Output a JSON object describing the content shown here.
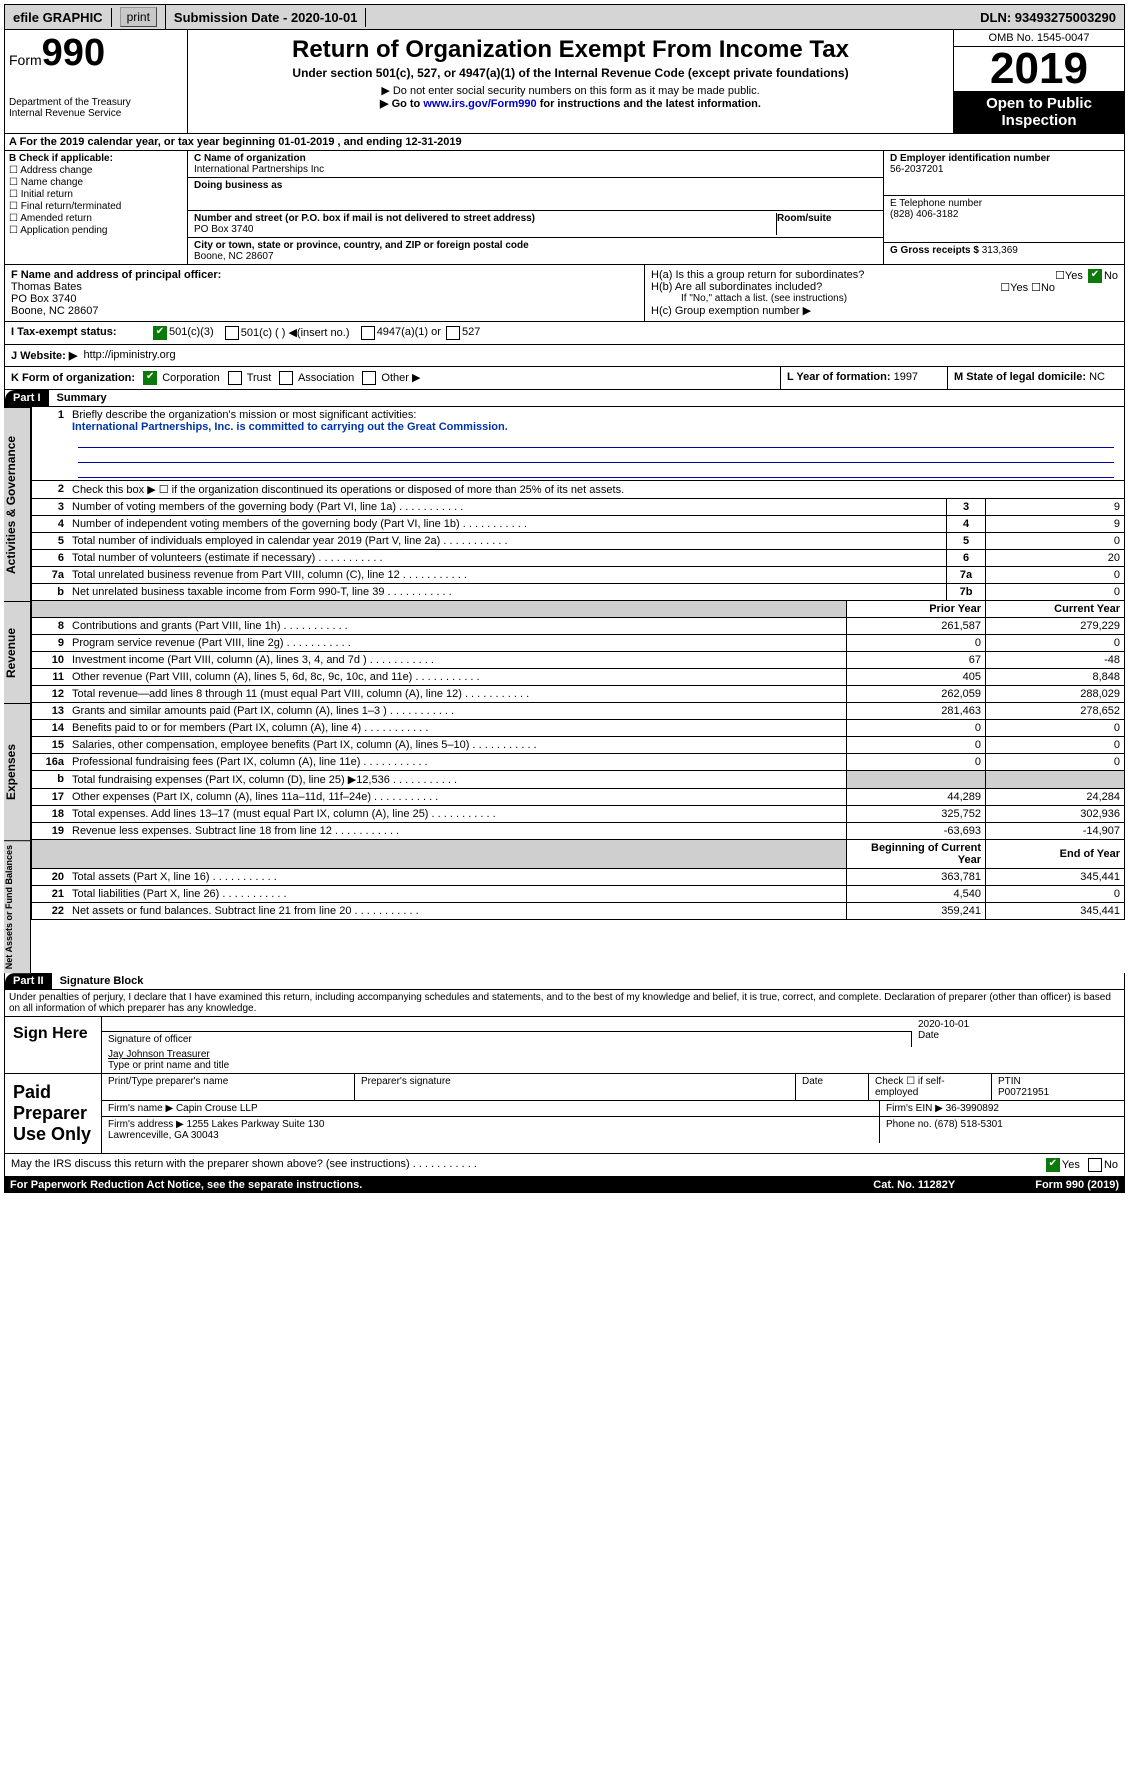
{
  "topbar": {
    "efile": "efile GRAPHIC",
    "print": "print",
    "submission": "Submission Date - 2020-10-01",
    "dln": "DLN: 93493275003290"
  },
  "header": {
    "form_word": "Form",
    "form_num": "990",
    "dept": "Department of the Treasury\nInternal Revenue Service",
    "title": "Return of Organization Exempt From Income Tax",
    "sub1": "Under section 501(c), 527, or 4947(a)(1) of the Internal Revenue Code (except private foundations)",
    "sub2": "▶ Do not enter social security numbers on this form as it may be made public.",
    "sub3_pre": "▶ Go to ",
    "sub3_link": "www.irs.gov/Form990",
    "sub3_post": " for instructions and the latest information.",
    "omb": "OMB No. 1545-0047",
    "year": "2019",
    "open": "Open to Public Inspection"
  },
  "rowA": "A  For the 2019 calendar year, or tax year beginning 01-01-2019    , and ending 12-31-2019",
  "boxB": {
    "title": "B Check if applicable:",
    "opts": [
      "Address change",
      "Name change",
      "Initial return",
      "Final return/terminated",
      "Amended return",
      "Application pending"
    ]
  },
  "boxC": {
    "name_lbl": "C Name of organization",
    "name": "International Partnerships Inc",
    "dba_lbl": "Doing business as",
    "street_lbl": "Number and street (or P.O. box if mail is not delivered to street address)",
    "room_lbl": "Room/suite",
    "street": "PO Box 3740",
    "city_lbl": "City or town, state or province, country, and ZIP or foreign postal code",
    "city": "Boone, NC  28607"
  },
  "boxD": {
    "lbl": "D Employer identification number",
    "val": "56-2037201"
  },
  "boxE": {
    "lbl": "E Telephone number",
    "val": "(828) 406-3182"
  },
  "boxG": {
    "lbl": "G Gross receipts $",
    "val": "313,369"
  },
  "boxF": {
    "lbl": "F  Name and address of principal officer:",
    "name": "Thomas Bates",
    "addr1": "PO Box 3740",
    "addr2": "Boone, NC  28607"
  },
  "boxH": {
    "a": "H(a)  Is this a group return for subordinates?",
    "b": "H(b)  Are all subordinates included?",
    "b_note": "If \"No,\" attach a list. (see instructions)",
    "c": "H(c)  Group exemption number ▶"
  },
  "rowI": {
    "lbl": "I  Tax-exempt status:",
    "o1": "501(c)(3)",
    "o2": "501(c) (  ) ◀(insert no.)",
    "o3": "4947(a)(1) or",
    "o4": "527"
  },
  "rowJ": {
    "lbl": "J  Website: ▶",
    "val": "http://ipministry.org"
  },
  "rowK": {
    "lbl": "K Form of organization:",
    "o1": "Corporation",
    "o2": "Trust",
    "o3": "Association",
    "o4": "Other ▶"
  },
  "rowL": {
    "lbl": "L Year of formation:",
    "val": "1997"
  },
  "rowM": {
    "lbl": "M State of legal domicile:",
    "val": "NC"
  },
  "part1": {
    "hdr": "Part I",
    "title": "Summary"
  },
  "gov": {
    "side": "Activities & Governance",
    "l1": "Briefly describe the organization's mission or most significant activities:",
    "l1_val": "International Partnerships, Inc. is committed to carrying out the Great Commission.",
    "l2": "Check this box ▶ ☐  if the organization discontinued its operations or disposed of more than 25% of its net assets.",
    "rows": [
      {
        "n": "3",
        "d": "Number of voting members of the governing body (Part VI, line 1a)",
        "b": "3",
        "v": "9"
      },
      {
        "n": "4",
        "d": "Number of independent voting members of the governing body (Part VI, line 1b)",
        "b": "4",
        "v": "9"
      },
      {
        "n": "5",
        "d": "Total number of individuals employed in calendar year 2019 (Part V, line 2a)",
        "b": "5",
        "v": "0"
      },
      {
        "n": "6",
        "d": "Total number of volunteers (estimate if necessary)",
        "b": "6",
        "v": "20"
      },
      {
        "n": "7a",
        "d": "Total unrelated business revenue from Part VIII, column (C), line 12",
        "b": "7a",
        "v": "0"
      },
      {
        "n": "b",
        "d": "Net unrelated business taxable income from Form 990-T, line 39",
        "b": "7b",
        "v": "0"
      }
    ]
  },
  "rev": {
    "side": "Revenue",
    "hdr_prior": "Prior Year",
    "hdr_curr": "Current Year",
    "rows": [
      {
        "n": "8",
        "d": "Contributions and grants (Part VIII, line 1h)",
        "p": "261,587",
        "c": "279,229"
      },
      {
        "n": "9",
        "d": "Program service revenue (Part VIII, line 2g)",
        "p": "0",
        "c": "0"
      },
      {
        "n": "10",
        "d": "Investment income (Part VIII, column (A), lines 3, 4, and 7d )",
        "p": "67",
        "c": "-48"
      },
      {
        "n": "11",
        "d": "Other revenue (Part VIII, column (A), lines 5, 6d, 8c, 9c, 10c, and 11e)",
        "p": "405",
        "c": "8,848"
      },
      {
        "n": "12",
        "d": "Total revenue—add lines 8 through 11 (must equal Part VIII, column (A), line 12)",
        "p": "262,059",
        "c": "288,029"
      }
    ]
  },
  "exp": {
    "side": "Expenses",
    "rows": [
      {
        "n": "13",
        "d": "Grants and similar amounts paid (Part IX, column (A), lines 1–3 )",
        "p": "281,463",
        "c": "278,652"
      },
      {
        "n": "14",
        "d": "Benefits paid to or for members (Part IX, column (A), line 4)",
        "p": "0",
        "c": "0"
      },
      {
        "n": "15",
        "d": "Salaries, other compensation, employee benefits (Part IX, column (A), lines 5–10)",
        "p": "0",
        "c": "0"
      },
      {
        "n": "16a",
        "d": "Professional fundraising fees (Part IX, column (A), line 11e)",
        "p": "0",
        "c": "0"
      },
      {
        "n": "b",
        "d": "Total fundraising expenses (Part IX, column (D), line 25) ▶12,536",
        "p": "",
        "c": "",
        "shade": true
      },
      {
        "n": "17",
        "d": "Other expenses (Part IX, column (A), lines 11a–11d, 11f–24e)",
        "p": "44,289",
        "c": "24,284"
      },
      {
        "n": "18",
        "d": "Total expenses. Add lines 13–17 (must equal Part IX, column (A), line 25)",
        "p": "325,752",
        "c": "302,936"
      },
      {
        "n": "19",
        "d": "Revenue less expenses. Subtract line 18 from line 12",
        "p": "-63,693",
        "c": "-14,907"
      }
    ]
  },
  "net": {
    "side": "Net Assets or Fund Balances",
    "hdr_beg": "Beginning of Current Year",
    "hdr_end": "End of Year",
    "rows": [
      {
        "n": "20",
        "d": "Total assets (Part X, line 16)",
        "p": "363,781",
        "c": "345,441"
      },
      {
        "n": "21",
        "d": "Total liabilities (Part X, line 26)",
        "p": "4,540",
        "c": "0"
      },
      {
        "n": "22",
        "d": "Net assets or fund balances. Subtract line 21 from line 20",
        "p": "359,241",
        "c": "345,441"
      }
    ]
  },
  "part2": {
    "hdr": "Part II",
    "title": "Signature Block"
  },
  "perjury": "Under penalties of perjury, I declare that I have examined this return, including accompanying schedules and statements, and to the best of my knowledge and belief, it is true, correct, and complete. Declaration of preparer (other than officer) is based on all information of which preparer has any knowledge.",
  "sign": {
    "here": "Sign Here",
    "sig_lbl": "Signature of officer",
    "date_lbl": "Date",
    "date": "2020-10-01",
    "name": "Jay Johnson Treasurer",
    "name_lbl": "Type or print name and title"
  },
  "paid": {
    "here": "Paid Preparer Use Only",
    "c1": "Print/Type preparer's name",
    "c2": "Preparer's signature",
    "c3": "Date",
    "c4_a": "Check ☐ if self-employed",
    "c5": "PTIN",
    "ptin": "P00721951",
    "firm_lbl": "Firm's name   ▶",
    "firm": "Capin Crouse LLP",
    "ein_lbl": "Firm's EIN ▶",
    "ein": "36-3990892",
    "addr_lbl": "Firm's address ▶",
    "addr": "1255 Lakes Parkway Suite 130\nLawrenceville, GA  30043",
    "phone_lbl": "Phone no.",
    "phone": "(678) 518-5301"
  },
  "discuss": "May the IRS discuss this return with the preparer shown above? (see instructions)",
  "footer": {
    "left": "For Paperwork Reduction Act Notice, see the separate instructions.",
    "mid": "Cat. No. 11282Y",
    "right": "Form 990 (2019)"
  }
}
